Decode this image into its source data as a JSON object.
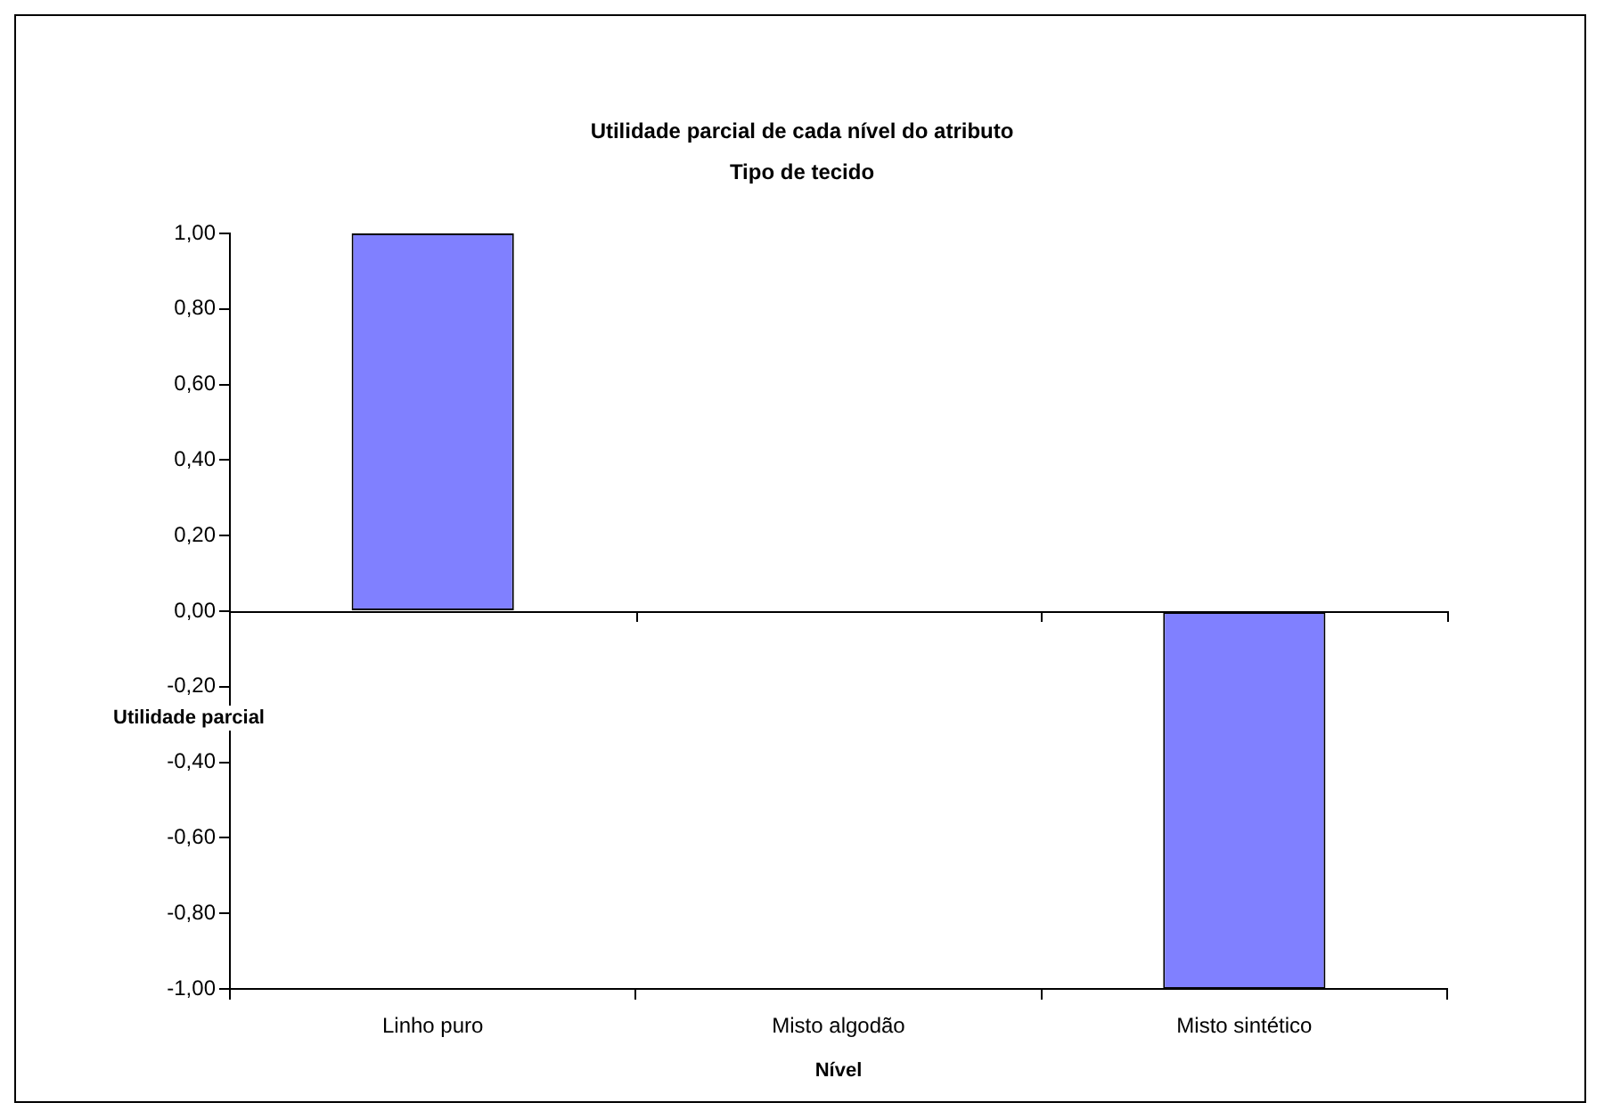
{
  "chart_data": {
    "type": "bar",
    "title": "Utilidade parcial de cada nível do atributo",
    "subtitle": "Tipo de tecido",
    "xlabel": "Nível",
    "ylabel": "Utilidade parcial",
    "categories": [
      "Linho puro",
      "Misto algodão",
      "Misto sintético"
    ],
    "values": [
      1.0,
      0.0,
      -1.0
    ],
    "color": "#8080ff",
    "ylim": [
      -1,
      1
    ],
    "yticks": [
      {
        "value": -1,
        "label": "-1,00"
      },
      {
        "value": -0.8,
        "label": "-0,80"
      },
      {
        "value": -0.6,
        "label": "-0,60"
      },
      {
        "value": -0.4,
        "label": "-0,40"
      },
      {
        "value": -0.2,
        "label": "-0,20"
      },
      {
        "value": 0,
        "label": "0,00"
      },
      {
        "value": 0.2,
        "label": "0,20"
      },
      {
        "value": 0.4,
        "label": "0,40"
      },
      {
        "value": 0.6,
        "label": "0,60"
      },
      {
        "value": 0.8,
        "label": "0,80"
      },
      {
        "value": 1,
        "label": "1,00"
      }
    ],
    "grid": false,
    "legend": false,
    "ref_lines": [
      {
        "axis": "y",
        "value": 0,
        "color": "#000000"
      }
    ]
  }
}
